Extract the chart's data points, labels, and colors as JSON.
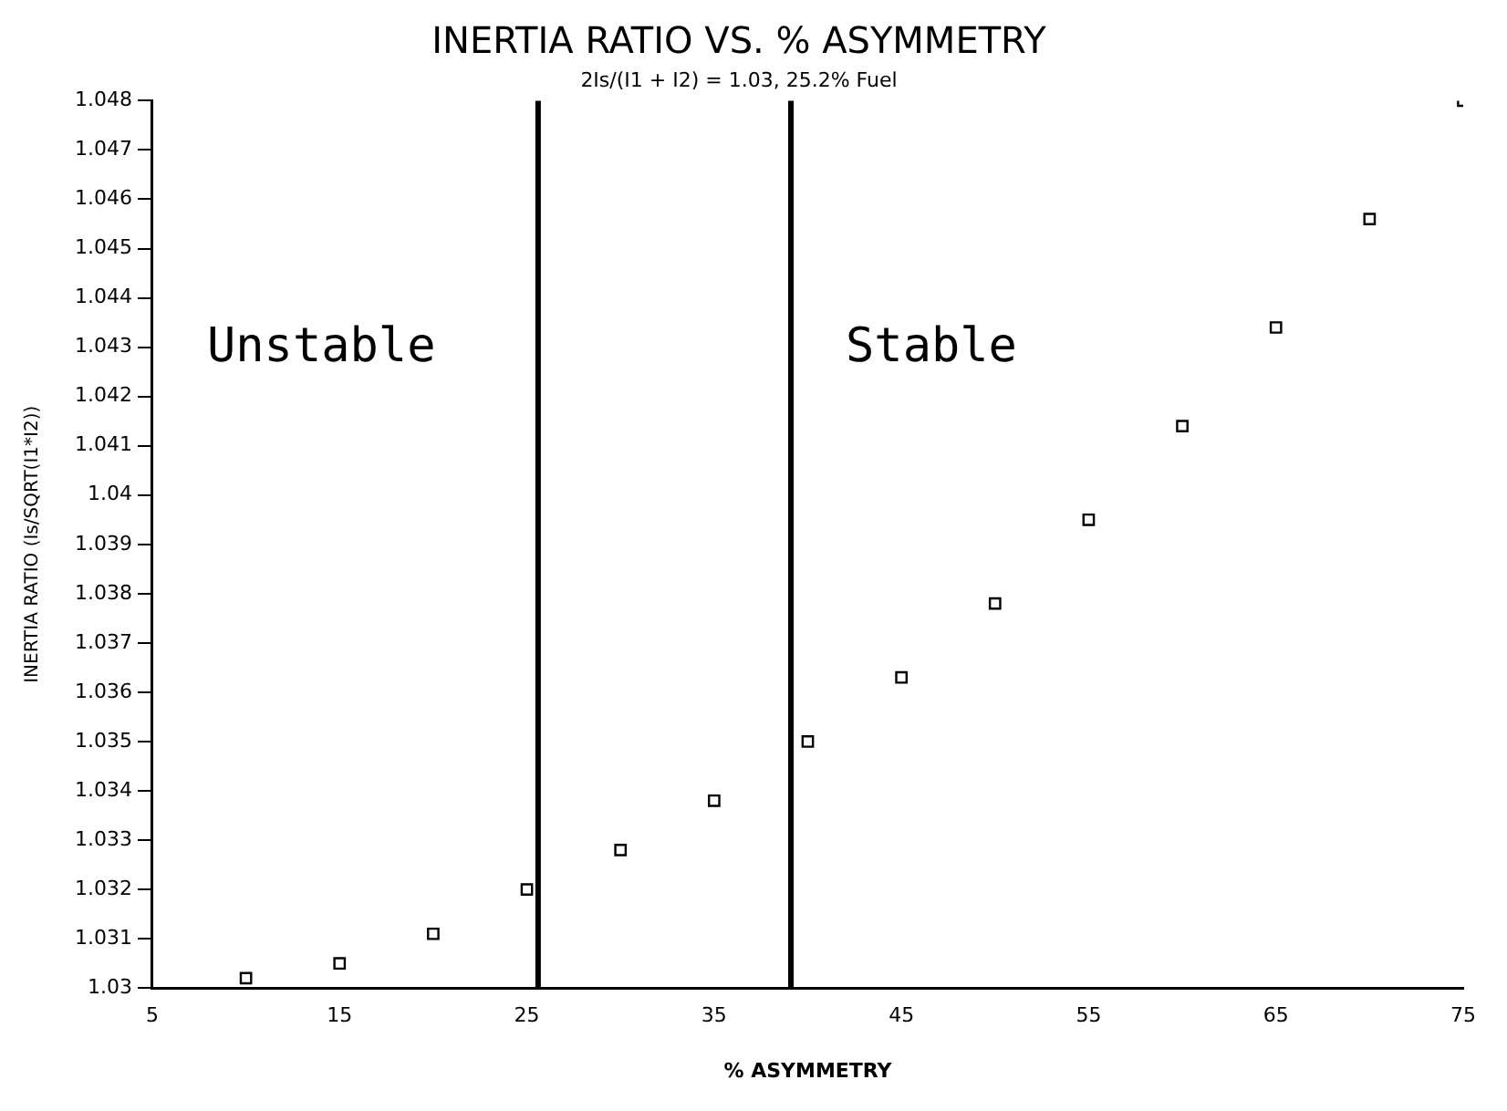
{
  "chart_data": {
    "type": "scatter",
    "title": "INERTIA RATIO VS. % ASYMMETRY",
    "subtitle": "2Is/(I1 + I2) = 1.03, 25.2% Fuel",
    "xlabel": "% ASYMMETRY",
    "ylabel": "INERTIA RATIO (Is/SQRT(I1*I2))",
    "x": [
      10,
      15,
      20,
      25,
      30,
      35,
      40,
      45,
      50,
      55,
      60,
      65,
      70,
      75
    ],
    "series": [
      {
        "color": "#000000",
        "values": [
          1.0302,
          1.0305,
          1.0311,
          1.032,
          1.0328,
          1.0338,
          1.035,
          1.0363,
          1.0378,
          1.0395,
          1.0414,
          1.0434,
          1.0456,
          1.048
        ]
      }
    ],
    "xlim": [
      5,
      75
    ],
    "xticks": [
      5,
      15,
      25,
      35,
      45,
      55,
      65,
      75
    ],
    "ylim": [
      1.03,
      1.048
    ],
    "yticks": [
      1.03,
      1.031,
      1.032,
      1.033,
      1.034,
      1.035,
      1.036,
      1.037,
      1.038,
      1.039,
      1.04,
      1.041,
      1.042,
      1.043,
      1.044,
      1.045,
      1.046,
      1.047,
      1.048
    ],
    "ref_lines": [
      {
        "axis": "x",
        "value": 25.6,
        "color": "#000000"
      },
      {
        "axis": "x",
        "value": 39.1,
        "color": "#000000"
      }
    ],
    "annotations": [
      "Unstable",
      "Stable"
    ],
    "marker": "square",
    "grid": false,
    "legend": false
  }
}
